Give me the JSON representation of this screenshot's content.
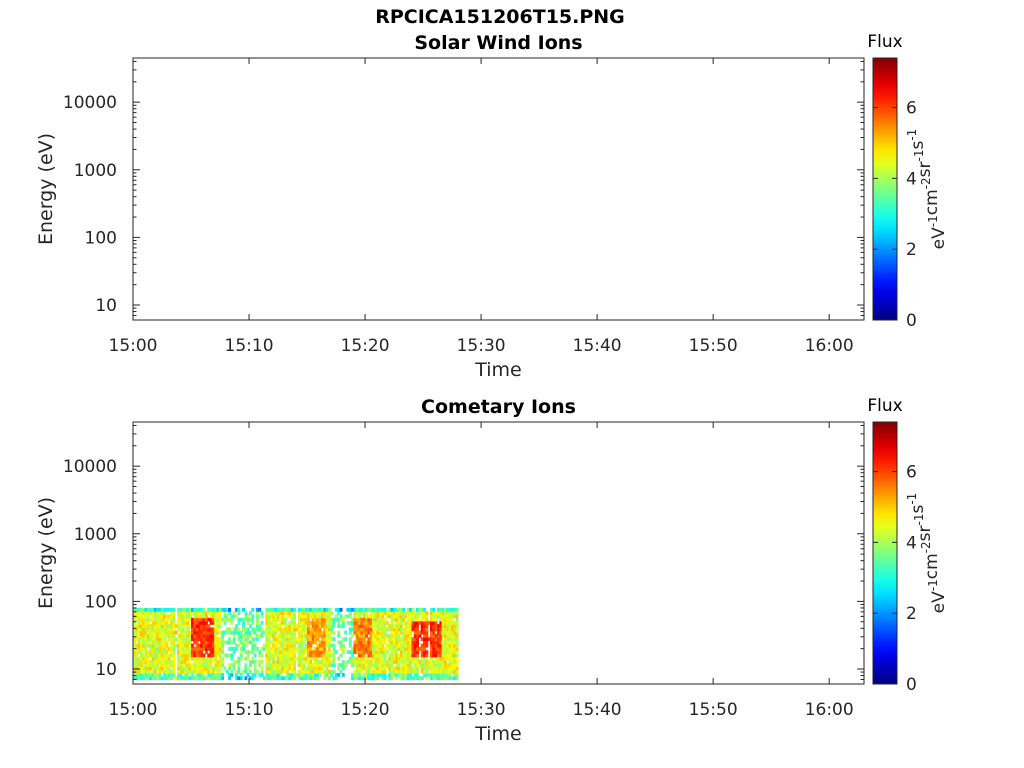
{
  "figure_title": "RPCICA151206T15.PNG",
  "chart_data": [
    {
      "type": "heatmap",
      "title": "Solar Wind Ions",
      "xlabel": "Time",
      "ylabel": "Energy (eV)",
      "x_ticks": [
        "15:00",
        "15:10",
        "15:20",
        "15:30",
        "15:40",
        "15:50",
        "16:00"
      ],
      "xlim": [
        "15:00",
        "16:03"
      ],
      "y_scale": "log",
      "y_ticks": [
        10,
        100,
        1000,
        10000
      ],
      "ylim": [
        6,
        45000
      ],
      "colorbar": {
        "title": "Flux",
        "label": "eV-1cm-2sr-1s-1",
        "ticks": [
          0,
          2,
          4,
          6
        ],
        "range": [
          0,
          7.4
        ]
      },
      "data": []
    },
    {
      "type": "heatmap",
      "title": "Cometary Ions",
      "xlabel": "Time",
      "ylabel": "Energy (eV)",
      "x_ticks": [
        "15:00",
        "15:10",
        "15:20",
        "15:30",
        "15:40",
        "15:50",
        "16:00"
      ],
      "xlim": [
        "15:00",
        "16:03"
      ],
      "y_scale": "log",
      "y_ticks": [
        10,
        100,
        1000,
        10000
      ],
      "ylim": [
        6,
        45000
      ],
      "colorbar": {
        "title": "Flux",
        "label": "eV-1cm-2sr-1s-1",
        "ticks": [
          0,
          2,
          4,
          6
        ],
        "range": [
          0,
          7.4
        ]
      },
      "data_coverage": {
        "time_range": [
          "15:00",
          "15:28"
        ],
        "energy_range_eV": [
          7,
          80
        ]
      },
      "high_flux_regions": [
        {
          "time_range": [
            "15:05",
            "15:07"
          ],
          "energy_range_eV": [
            15,
            60
          ],
          "flux": 6.5
        },
        {
          "time_range": [
            "15:15",
            "15:16.5"
          ],
          "energy_range_eV": [
            15,
            60
          ],
          "flux": 5.8
        },
        {
          "time_range": [
            "15:19",
            "15:20.5"
          ],
          "energy_range_eV": [
            15,
            60
          ],
          "flux": 6.0
        },
        {
          "time_range": [
            "15:24",
            "15:26.5"
          ],
          "energy_range_eV": [
            15,
            50
          ],
          "flux": 6.5
        }
      ]
    }
  ]
}
